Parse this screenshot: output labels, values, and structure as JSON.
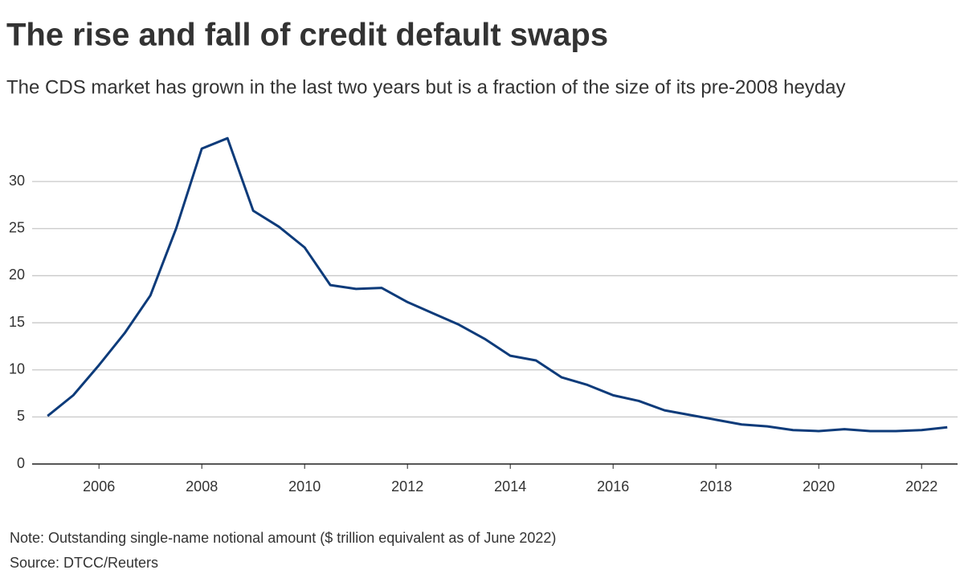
{
  "chart_data": {
    "type": "line",
    "title": "The rise and fall of credit default swaps",
    "subtitle": "The CDS market has grown in the last two years but is a fraction of the size of its pre-2008 heyday",
    "note": "Note: Outstanding single-name notional amount ($ trillion equivalent as of June 2022)",
    "source": "Source: DTCC/Reuters",
    "x": [
      2005,
      2005.5,
      2006,
      2006.5,
      2007,
      2007.5,
      2008,
      2008.5,
      2009,
      2009.5,
      2010,
      2010.5,
      2011,
      2011.5,
      2012,
      2012.5,
      2013,
      2013.5,
      2014,
      2014.5,
      2015,
      2015.5,
      2016,
      2016.5,
      2017,
      2017.5,
      2018,
      2018.5,
      2019,
      2019.5,
      2020,
      2020.5,
      2021,
      2021.5,
      2022,
      2022.5
    ],
    "series": [
      {
        "color": "#0d3b7a",
        "values": [
          5.1,
          7.3,
          10.5,
          13.9,
          17.9,
          25.0,
          33.5,
          34.6,
          26.9,
          25.2,
          23.0,
          19.0,
          18.6,
          18.7,
          17.2,
          16.0,
          14.8,
          13.3,
          11.5,
          11.0,
          9.2,
          8.4,
          7.3,
          6.7,
          5.7,
          5.2,
          4.7,
          4.2,
          4.0,
          3.6,
          3.5,
          3.7,
          3.5,
          3.5,
          3.6,
          3.9
        ]
      }
    ],
    "xlim": [
      2004.7,
      2022.7
    ],
    "xticks": [
      2006,
      2008,
      2010,
      2012,
      2014,
      2016,
      2018,
      2020,
      2022
    ],
    "ylim": [
      0,
      35
    ],
    "yticks": [
      0,
      5,
      10,
      15,
      20,
      25,
      30
    ],
    "grid": true
  }
}
